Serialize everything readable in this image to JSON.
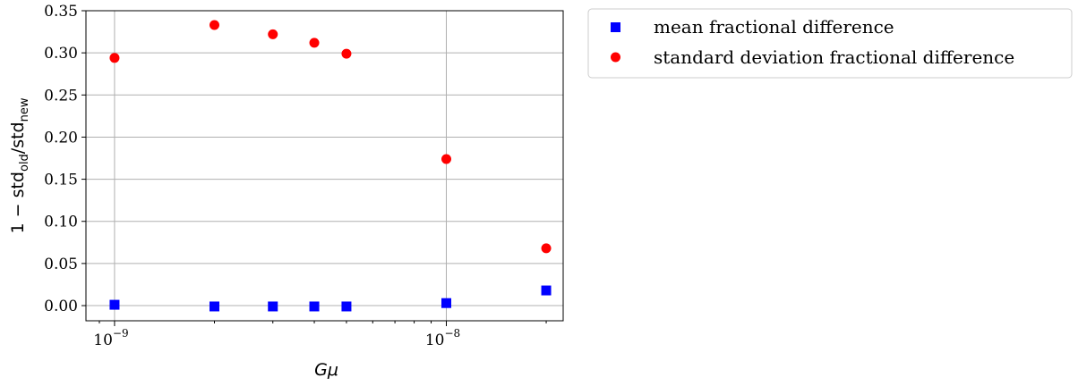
{
  "chart_data": {
    "type": "scatter",
    "xscale": "log",
    "xlim": [
      8.2e-10,
      2.25e-08
    ],
    "ylim": [
      -0.018,
      0.35
    ],
    "grid": true,
    "xlabel": "Gμ",
    "ylabel": {
      "prefix": "1 − std",
      "sub1": "old",
      "mid": "/std",
      "sub2": "new"
    },
    "x_major_ticks": [
      {
        "value": 1e-09,
        "base": "10",
        "exp": "−9"
      },
      {
        "value": 1e-08,
        "base": "10",
        "exp": "−8"
      }
    ],
    "y_ticks": [
      0.0,
      0.05,
      0.1,
      0.15,
      0.2,
      0.25,
      0.3,
      0.35
    ],
    "y_tick_labels": [
      "0.00",
      "0.05",
      "0.10",
      "0.15",
      "0.20",
      "0.25",
      "0.30",
      "0.35"
    ],
    "legend_position": "outside-upper-right",
    "series": [
      {
        "name": "mean fractional difference",
        "marker": "square",
        "color": "#0000ff",
        "x": [
          1e-09,
          2e-09,
          3e-09,
          4e-09,
          5e-09,
          1e-08,
          2e-08
        ],
        "y": [
          0.001,
          -0.001,
          -0.001,
          -0.001,
          -0.001,
          0.003,
          0.018
        ]
      },
      {
        "name": "standard deviation fractional difference",
        "marker": "circle",
        "color": "#ff0000",
        "x": [
          1e-09,
          2e-09,
          3e-09,
          4e-09,
          5e-09,
          1e-08,
          2e-08
        ],
        "y": [
          0.294,
          0.333,
          0.322,
          0.312,
          0.299,
          0.174,
          0.068
        ]
      }
    ]
  }
}
